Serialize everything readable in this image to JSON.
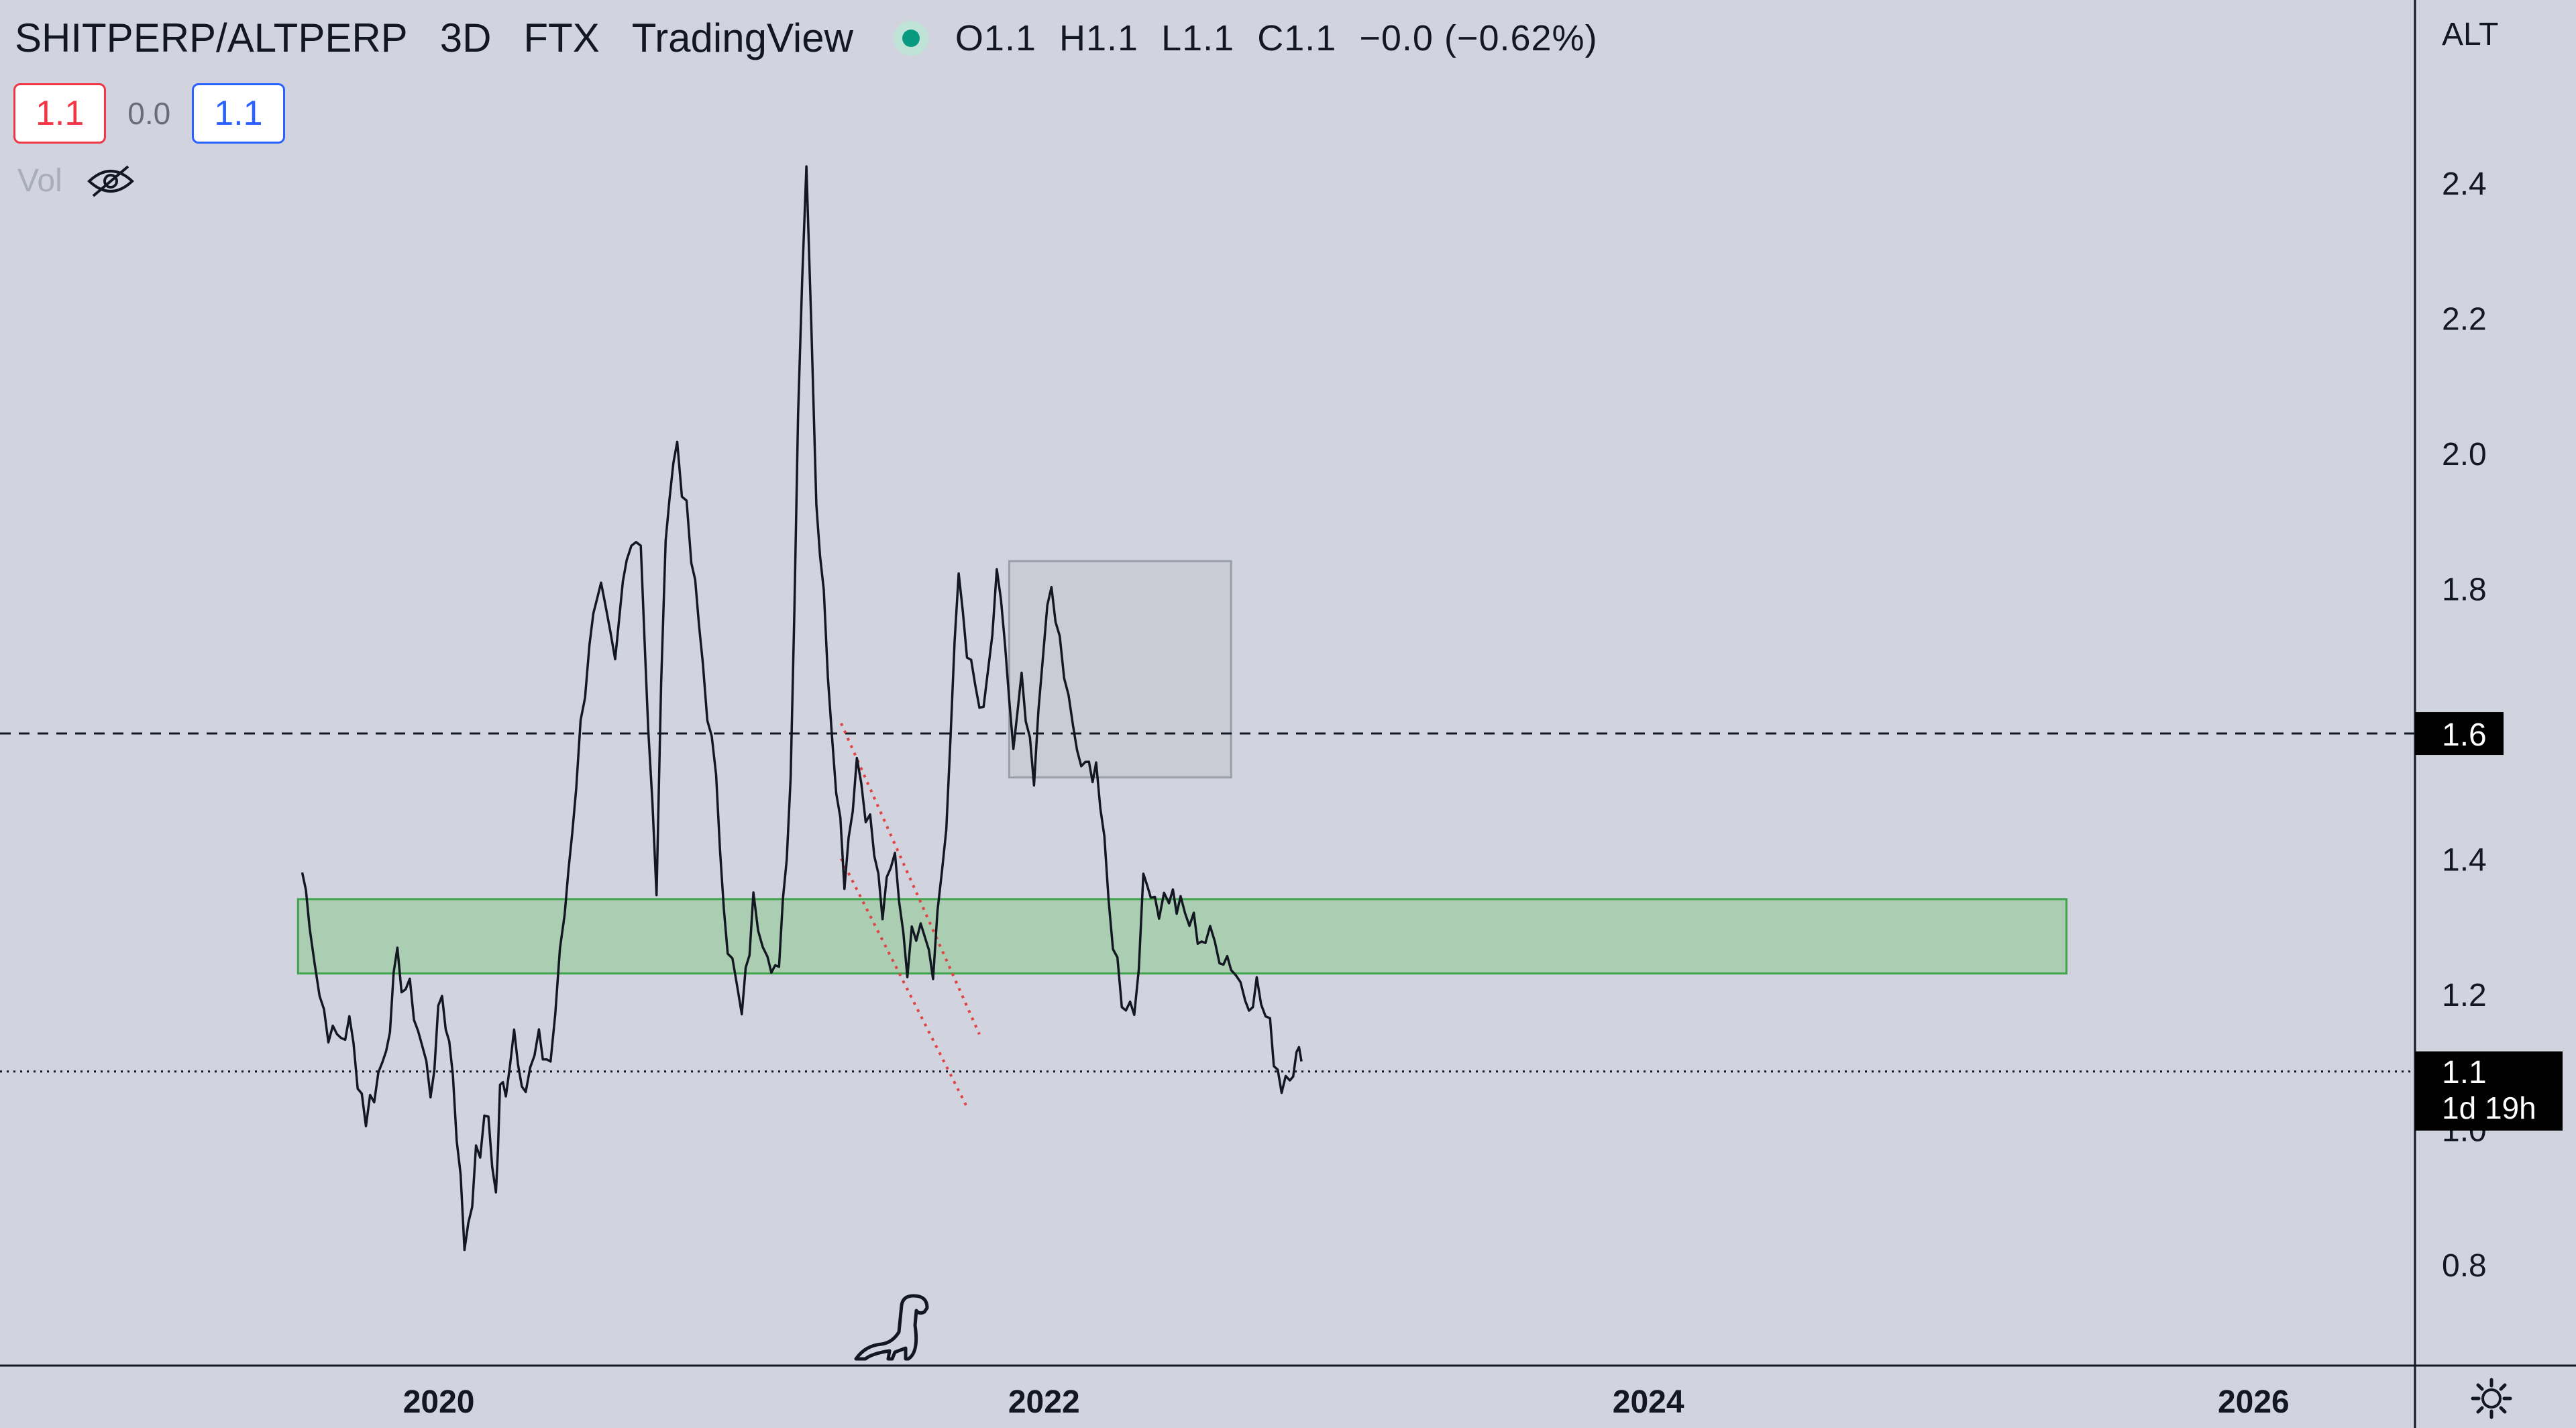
{
  "header": {
    "symbol": "SHITPERP/ALTPERP",
    "interval": "3D",
    "exchange": "FTX",
    "platform": "TradingView",
    "ohlc": {
      "open": "O1.1",
      "high": "H1.1",
      "low": "L1.1",
      "close": "C1.1",
      "change": "−0.0 (−0.62%)"
    },
    "bid": "1.1",
    "spread": "0.0",
    "ask": "1.1",
    "volume_label": "Vol",
    "status_color": "#089981"
  },
  "axis_mode": "ALT",
  "price_labels": {
    "dashed": "1.6",
    "current": "1.1",
    "countdown": "1d 19h"
  },
  "chart_data": {
    "type": "line",
    "title": "",
    "xlabel": "",
    "ylabel": "",
    "x_ticks": [
      "2020",
      "2022",
      "2024",
      "2026"
    ],
    "y_ticks": [
      0.8,
      1.0,
      1.2,
      1.4,
      1.6,
      1.8,
      2.0,
      2.2,
      2.4
    ],
    "xlim": [
      "2018-07-20",
      "2026-07-15"
    ],
    "ylim": [
      0.65,
      2.67
    ],
    "grid": false,
    "series": [
      {
        "x": [
          "2019-07-20",
          "2019-07-29",
          "2019-08-10",
          "2019-08-26",
          "2019-09-15",
          "2019-10-05",
          "2019-10-25",
          "2019-11-12",
          "2019-12-02",
          "2019-12-22",
          "2020-01-05",
          "2020-01-18",
          "2020-02-01",
          "2020-02-15",
          "2020-03-01",
          "2020-03-10",
          "2020-03-15",
          "2020-03-22",
          "2020-04-01",
          "2020-04-15",
          "2020-05-01",
          "2020-05-15",
          "2020-06-01",
          "2020-06-15",
          "2020-07-01",
          "2020-07-15",
          "2020-08-01",
          "2020-08-15",
          "2020-09-01",
          "2020-09-10",
          "2020-09-20",
          "2020-10-01",
          "2020-10-15",
          "2020-11-01",
          "2020-11-15",
          "2020-12-01",
          "2020-12-15",
          "2021-01-01",
          "2021-01-15",
          "2021-02-01",
          "2021-02-15",
          "2021-03-01",
          "2021-03-10",
          "2021-03-20",
          "2021-04-01",
          "2021-04-10",
          "2021-04-20",
          "2021-05-05",
          "2021-05-20",
          "2021-06-05",
          "2021-06-20",
          "2021-07-05",
          "2021-07-20",
          "2021-08-05",
          "2021-08-20",
          "2021-09-05",
          "2021-09-20",
          "2021-10-05",
          "2021-10-20",
          "2021-11-05",
          "2021-11-15",
          "2021-11-25",
          "2021-12-05",
          "2021-12-20",
          "2022-01-05",
          "2022-01-20",
          "2022-02-05",
          "2022-02-20",
          "2022-03-05",
          "2022-03-20",
          "2022-04-05",
          "2022-04-20",
          "2022-05-01",
          "2022-05-10",
          "2022-05-20",
          "2022-06-01",
          "2022-06-15",
          "2022-07-01",
          "2022-07-15",
          "2022-08-01",
          "2022-08-15",
          "2022-09-01",
          "2022-09-15",
          "2022-10-01",
          "2022-10-15",
          "2022-10-25",
          "2022-11-02",
          "2022-11-08"
        ],
        "values": [
          1.38,
          1.32,
          1.2,
          1.13,
          1.15,
          1.02,
          1.1,
          1.24,
          1.18,
          1.06,
          1.2,
          1.09,
          0.83,
          0.95,
          1.02,
          0.9,
          1.05,
          1.07,
          1.15,
          1.06,
          1.12,
          1.1,
          1.32,
          1.52,
          1.73,
          1.78,
          1.68,
          1.87,
          1.88,
          1.58,
          1.36,
          1.9,
          2.02,
          1.84,
          1.69,
          1.5,
          1.28,
          1.16,
          1.33,
          1.28,
          1.22,
          1.52,
          2.07,
          2.45,
          1.94,
          1.78,
          1.6,
          1.38,
          1.55,
          1.45,
          1.32,
          1.4,
          1.25,
          1.33,
          1.25,
          1.45,
          1.82,
          1.67,
          1.6,
          1.8,
          1.72,
          1.55,
          1.65,
          1.5,
          1.8,
          1.72,
          1.58,
          1.52,
          1.55,
          1.33,
          1.2,
          1.18,
          1.35,
          1.37,
          1.33,
          1.35,
          1.32,
          1.3,
          1.28,
          1.27,
          1.25,
          1.2,
          1.21,
          1.14,
          1.07,
          1.1,
          1.1,
          1.1
        ]
      }
    ],
    "horizontal_lines": [
      {
        "value": 1.585,
        "style": "dashed",
        "label": "1.6"
      },
      {
        "value": 1.085,
        "style": "dotted",
        "label": "1.1"
      }
    ],
    "zones": [
      {
        "x_start": "2019-07-15",
        "x_end": "2025-05-20",
        "y_low": 1.23,
        "y_high": 1.34,
        "color": "#a5cba9"
      },
      {
        "x_start": "2021-11-20",
        "x_end": "2022-08-15",
        "y_low": 1.52,
        "y_high": 1.84,
        "color": "#c6c9d2"
      }
    ],
    "trend_lines": [
      {
        "x1": "2021-05-01",
        "y1": 1.6,
        "x2": "2021-10-15",
        "y2": 1.14,
        "color": "#e04343",
        "style": "dotted"
      },
      {
        "x1": "2021-05-01",
        "y1": 1.4,
        "x2": "2021-10-01",
        "y2": 1.03,
        "color": "#e04343",
        "style": "dotted"
      }
    ]
  }
}
